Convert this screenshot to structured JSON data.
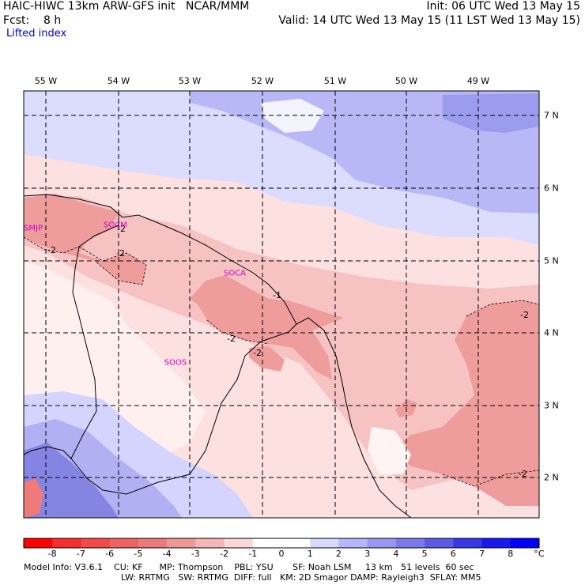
{
  "header": {
    "title_line": "HAIC-HIWC 13km ARW-GFS init   NCAR/MMM",
    "fcst_line": "Fcst:    8 h",
    "field_line": "Lifted index",
    "init_line": "Init: 06 UTC Wed 13 May 15",
    "valid_line": "Valid: 14 UTC Wed 13 May 15 (11 LST Wed 13 May 15)"
  },
  "map": {
    "lon_labels": [
      "55 W",
      "54 W",
      "53 W",
      "52 W",
      "51 W",
      "50 W",
      "49 W"
    ],
    "lat_labels": [
      "7 N",
      "6 N",
      "5 N",
      "4 N",
      "3 N",
      "2 N"
    ],
    "stations": [
      "SMJP",
      "SOCM",
      "SOCA",
      "SOOS"
    ],
    "contour_labels": [
      "-2",
      "-2",
      "-2",
      "-2",
      "-2",
      "-2",
      "-2",
      "-1"
    ],
    "colors": {
      "pink_light": "#fde0e0",
      "pink_mid": "#f6b4b4",
      "pink_dark": "#ee8e8e",
      "blue_light": "#dcdcff",
      "blue_mid": "#b8b8f6",
      "blue_dark": "#8c8ce6",
      "white": "#ffffff"
    }
  },
  "colorbar": {
    "labels": [
      "-8",
      "-7",
      "-6",
      "-5",
      "-4",
      "-3",
      "-2",
      "-1",
      "0",
      "1",
      "2",
      "3",
      "4",
      "5",
      "6",
      "7",
      "8",
      "°C"
    ],
    "colors": [
      "#ff0000",
      "#f92d2d",
      "#f54848",
      "#f06262",
      "#ec7a7a",
      "#f09898",
      "#f5b6b6",
      "#fad8d8",
      "#ffffff",
      "#ffffff",
      "#d8d8ff",
      "#b6b6fa",
      "#9898f2",
      "#7a7aec",
      "#5a5ae4",
      "#3838e6",
      "#1818f2",
      "#0000ff"
    ]
  },
  "footer": {
    "line1": "Model Info: V3.6.1    CU: KF      MP: Thompson    PBL: YSU       SF: Noah LSM     13 km   51 levels  60 sec",
    "line2": "LW: RRTMG   SW: RRTMG  DIFF: full   KM: 2D Smagor DAMP: Rayleigh3  SFLAY: MM5"
  }
}
